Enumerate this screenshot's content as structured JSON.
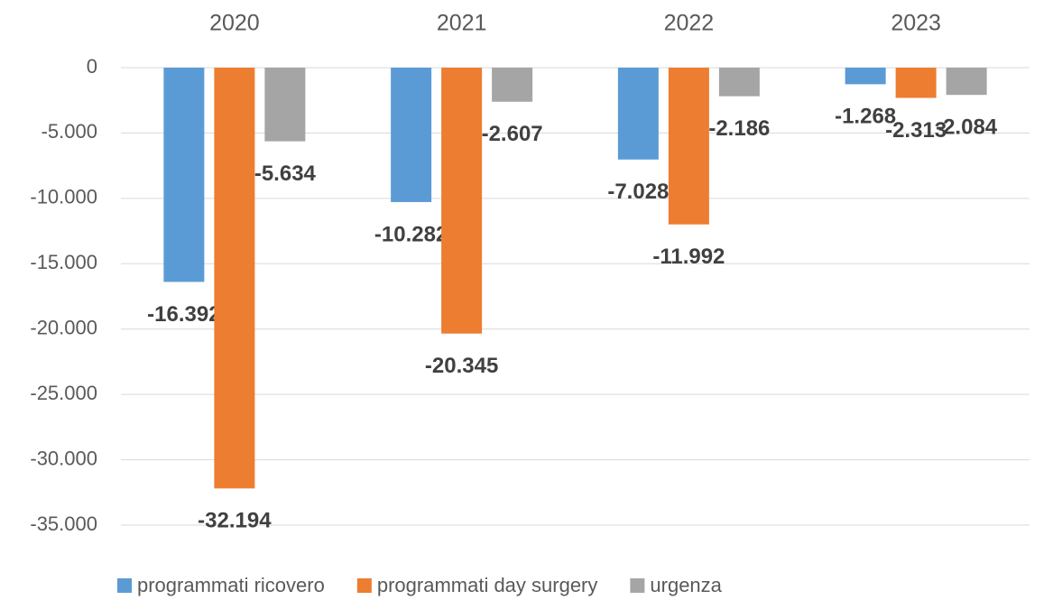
{
  "chart_data": {
    "type": "bar",
    "categories": [
      "2020",
      "2021",
      "2022",
      "2023"
    ],
    "series": [
      {
        "name": "programmati ricovero",
        "color": "#5b9bd5",
        "values": [
          -16392,
          -10282,
          -7028,
          -1268
        ],
        "value_labels": [
          "-16.392",
          "-10.282",
          "-7.028",
          "-1.268"
        ]
      },
      {
        "name": "programmati day surgery",
        "color": "#ed7d31",
        "values": [
          -32194,
          -20345,
          -11992,
          -2313
        ],
        "value_labels": [
          "-32.194",
          "-20.345",
          "-11.992",
          "-2.313"
        ]
      },
      {
        "name": "urgenza",
        "color": "#a5a5a5",
        "values": [
          -5634,
          -2607,
          -2186,
          -2084
        ],
        "value_labels": [
          "-5.634",
          "-2.607",
          "-2.186",
          "-2.084"
        ]
      }
    ],
    "ylim": [
      -35000,
      0
    ],
    "yticks": [
      0,
      {
        "value": -5000,
        "label": "-5.000"
      },
      {
        "value": -10000,
        "label": "-10.000"
      },
      {
        "value": -15000,
        "label": "-15.000"
      },
      {
        "value": -20000,
        "label": "-20.000"
      },
      {
        "value": -25000,
        "label": "-25.000"
      },
      {
        "value": -30000,
        "label": "-30.000"
      },
      {
        "value": -35000,
        "label": "-35.000"
      }
    ],
    "grid": true,
    "legend": "bottom"
  }
}
